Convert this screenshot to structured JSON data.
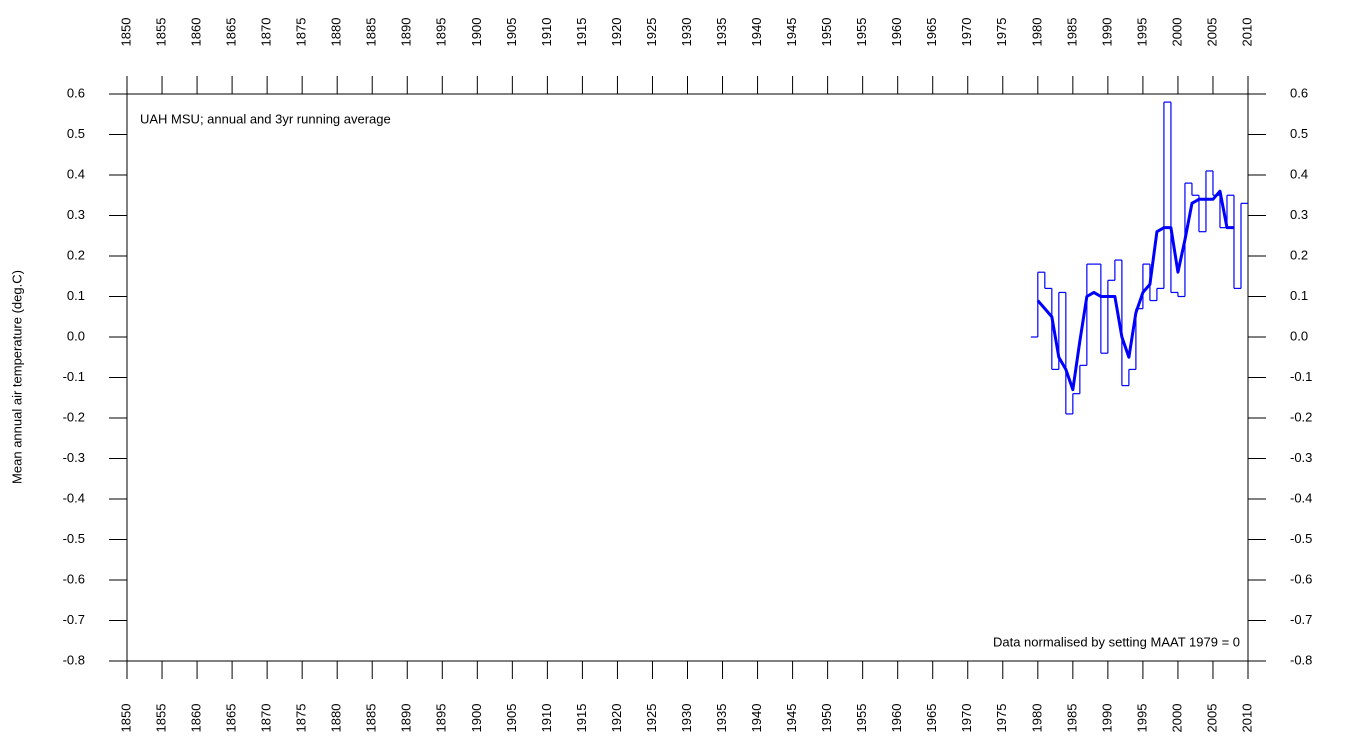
{
  "chart_data": {
    "type": "line",
    "title": "UAH MSU; annual and 3yr running average",
    "annotation": "Data normalised by setting MAAT 1979 = 0",
    "ylabel": "Mean annual air temperature (deg.C)",
    "xlim": [
      1850,
      2010
    ],
    "xticks": [
      1850,
      1855,
      1860,
      1865,
      1870,
      1875,
      1880,
      1885,
      1890,
      1895,
      1900,
      1905,
      1910,
      1915,
      1920,
      1925,
      1930,
      1935,
      1940,
      1945,
      1950,
      1955,
      1960,
      1965,
      1970,
      1975,
      1980,
      1985,
      1990,
      1995,
      2000,
      2005,
      2010
    ],
    "ylim": [
      -0.8,
      0.6
    ],
    "yticks": [
      0.6,
      0.5,
      0.4,
      0.3,
      0.2,
      0.1,
      {
        "value": 0,
        "label": "0.0"
      },
      -0.1,
      -0.2,
      -0.3,
      -0.4,
      -0.5,
      -0.6,
      -0.7,
      -0.8
    ],
    "series": [
      {
        "color": "#0000ff",
        "step": true,
        "linewidth": 1.2,
        "x": [
          1979,
          1980,
          1981,
          1982,
          1983,
          1984,
          1985,
          1986,
          1987,
          1988,
          1989,
          1990,
          1991,
          1992,
          1993,
          1994,
          1995,
          1996,
          1997,
          1998,
          1999,
          2000,
          2001,
          2002,
          2003,
          2004,
          2005,
          2006,
          2007,
          2008,
          2009
        ],
        "values": [
          0.0,
          0.16,
          0.12,
          -0.08,
          0.11,
          -0.19,
          -0.14,
          -0.07,
          0.18,
          0.18,
          -0.04,
          0.14,
          0.19,
          -0.12,
          -0.08,
          0.07,
          0.18,
          0.09,
          0.12,
          0.58,
          0.11,
          0.1,
          0.38,
          0.35,
          0.26,
          0.41,
          0.35,
          0.27,
          0.35,
          0.12,
          0.33
        ]
      },
      {
        "color": "#0000ff",
        "step": false,
        "linewidth": 3,
        "x": [
          1980,
          1981,
          1982,
          1983,
          1984,
          1985,
          1986,
          1987,
          1988,
          1989,
          1990,
          1991,
          1992,
          1993,
          1994,
          1995,
          1996,
          1997,
          1998,
          1999,
          2000,
          2001,
          2002,
          2003,
          2004,
          2005,
          2006,
          2007,
          2008
        ],
        "values": [
          0.09,
          0.07,
          0.05,
          -0.05,
          -0.08,
          -0.13,
          -0.01,
          0.1,
          0.11,
          0.1,
          0.1,
          0.1,
          0.0,
          -0.05,
          0.06,
          0.11,
          0.13,
          0.26,
          0.27,
          0.27,
          0.16,
          0.24,
          0.33,
          0.34,
          0.34,
          0.34,
          0.36,
          0.27,
          0.27
        ]
      }
    ]
  }
}
